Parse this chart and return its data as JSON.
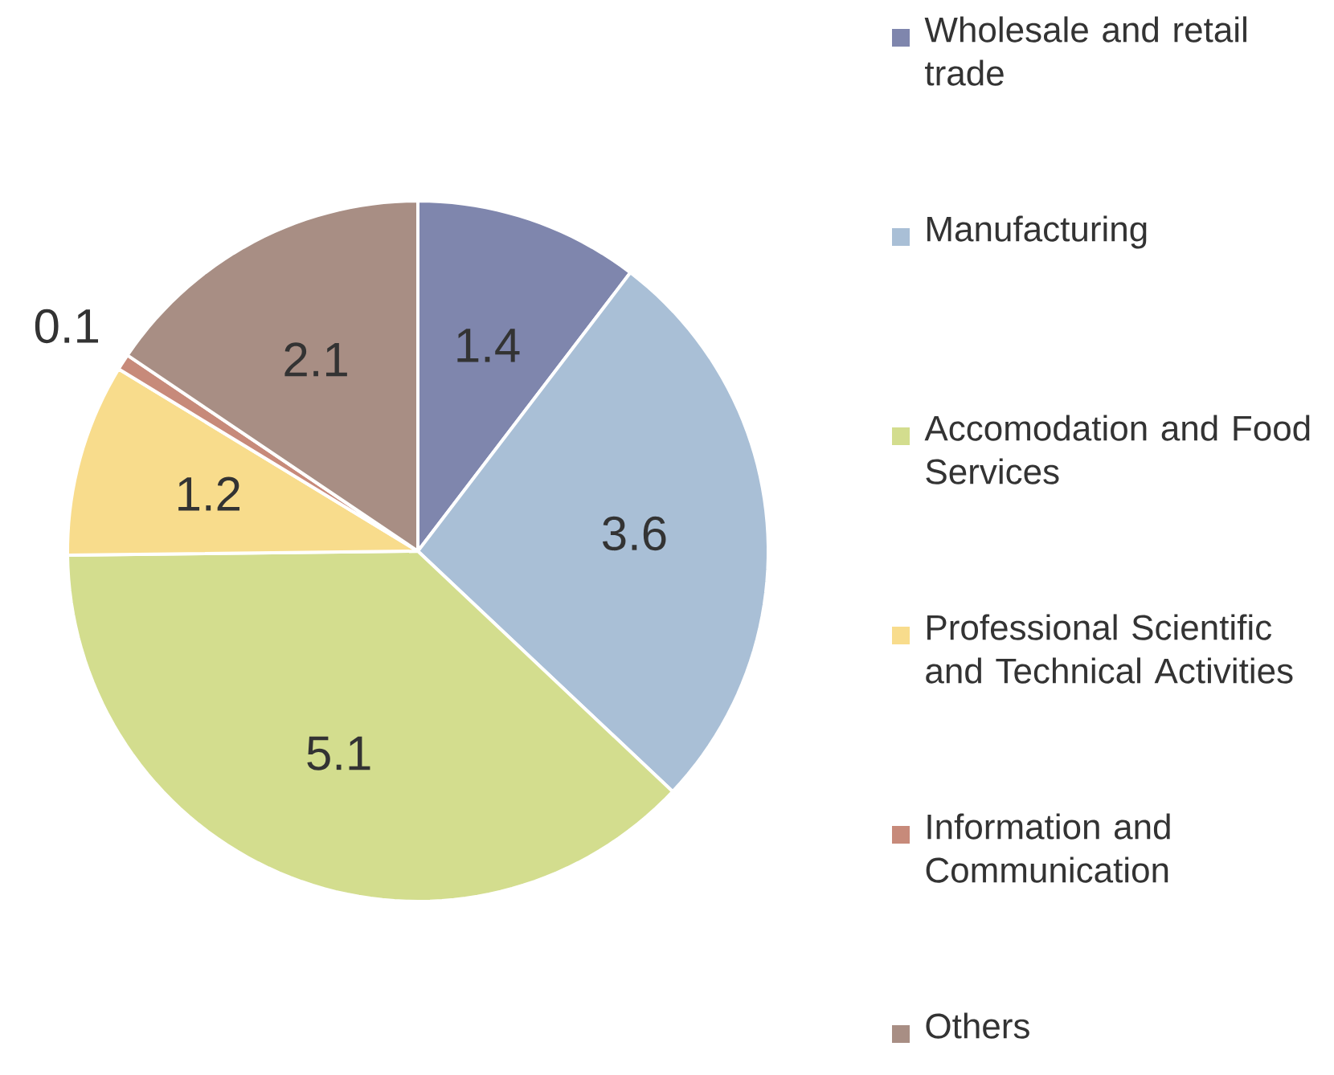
{
  "chart_data": {
    "type": "pie",
    "categories": [
      "Wholesale and retail trade",
      "Manufacturing",
      "Accomodation and Food Services",
      "Professional Scientific and Technical Activities",
      "Information and Communication",
      "Others"
    ],
    "values": [
      1.4,
      3.6,
      5.1,
      1.2,
      0.1,
      2.1
    ],
    "colors": [
      "#7f86ad",
      "#a9bfd6",
      "#d3dd8e",
      "#f8dc8c",
      "#c78a7a",
      "#a88e84"
    ],
    "data_labels": true,
    "legend": "right"
  }
}
